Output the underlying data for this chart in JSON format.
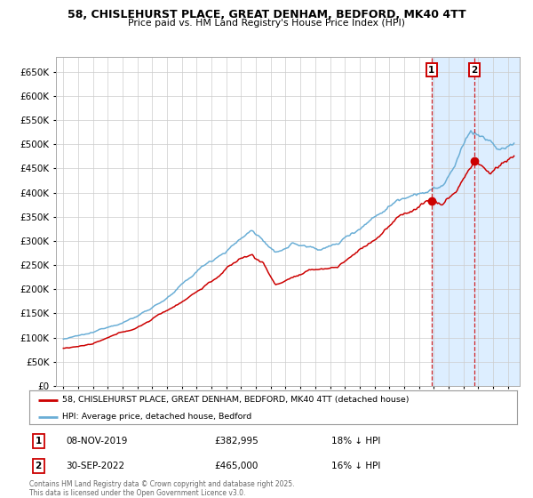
{
  "title": "58, CHISLEHURST PLACE, GREAT DENHAM, BEDFORD, MK40 4TT",
  "subtitle": "Price paid vs. HM Land Registry's House Price Index (HPI)",
  "legend_line1": "58, CHISLEHURST PLACE, GREAT DENHAM, BEDFORD, MK40 4TT (detached house)",
  "legend_line2": "HPI: Average price, detached house, Bedford",
  "annotation1_label": "1",
  "annotation1_date": "08-NOV-2019",
  "annotation1_price": "£382,995",
  "annotation1_hpi": "18% ↓ HPI",
  "annotation2_label": "2",
  "annotation2_date": "30-SEP-2022",
  "annotation2_price": "£465,000",
  "annotation2_hpi": "16% ↓ HPI",
  "sale1_x": 2019.854,
  "sale1_y": 382995,
  "sale2_x": 2022.748,
  "sale2_y": 465000,
  "vline1_x": 2019.854,
  "vline2_x": 2022.748,
  "shade_start": 2019.854,
  "shade_end": 2025.8,
  "ylim": [
    0,
    680000
  ],
  "xlim": [
    1994.5,
    2025.8
  ],
  "yticks": [
    0,
    50000,
    100000,
    150000,
    200000,
    250000,
    300000,
    350000,
    400000,
    450000,
    500000,
    550000,
    600000,
    650000
  ],
  "ytick_labels": [
    "£0",
    "£50K",
    "£100K",
    "£150K",
    "£200K",
    "£250K",
    "£300K",
    "£350K",
    "£400K",
    "£450K",
    "£500K",
    "£550K",
    "£600K",
    "£650K"
  ],
  "hpi_color": "#6aaed6",
  "price_color": "#cc0000",
  "bg_color": "#ffffff",
  "shade_color": "#ddeeff",
  "grid_color": "#cccccc",
  "footer": "Contains HM Land Registry data © Crown copyright and database right 2025.\nThis data is licensed under the Open Government Licence v3.0."
}
